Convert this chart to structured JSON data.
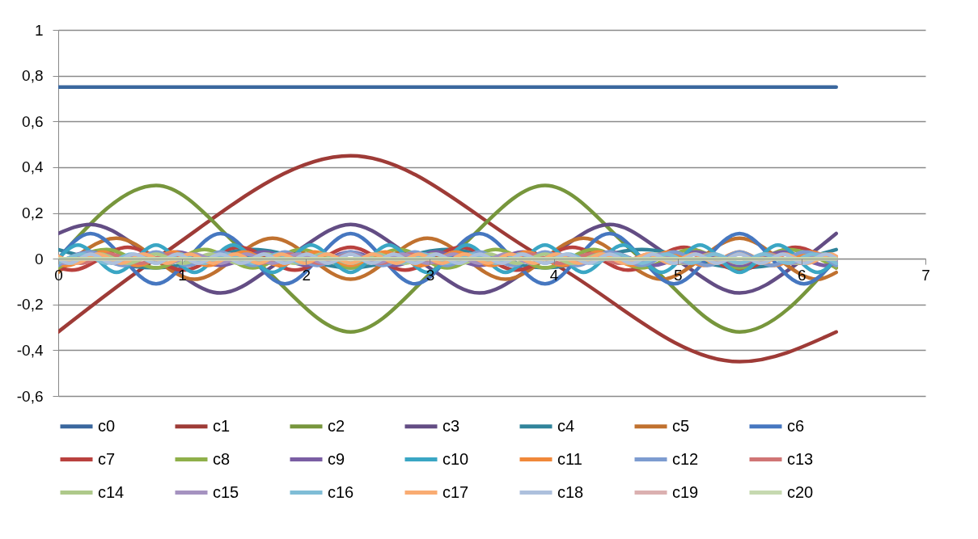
{
  "chart_data": {
    "type": "line",
    "xlim": [
      0,
      7
    ],
    "xticks": [
      0,
      1,
      2,
      3,
      4,
      5,
      6,
      7
    ],
    "ylim": [
      -0.6,
      1
    ],
    "yticks": [
      {
        "value": -0.6,
        "label": "-0,6"
      },
      {
        "value": -0.4,
        "label": "-0,4"
      },
      {
        "value": -0.2,
        "label": "-0,2"
      },
      0,
      {
        "value": 0.2,
        "label": "0,2"
      },
      {
        "value": 0.4,
        "label": "0,4"
      },
      {
        "value": 0.6,
        "label": "0,6"
      },
      {
        "value": 0.8,
        "label": "0,8"
      },
      1
    ],
    "grid": "y",
    "legend": "bottom",
    "series": [
      {
        "name": "c0",
        "color": "#3a679e",
        "x": [
          0,
          6.28
        ],
        "values": [
          0.75,
          0.75
        ]
      },
      {
        "name": "c1",
        "color": "#9e3b37",
        "x": [
          0,
          0.79,
          2.36,
          3.93,
          5.5,
          6.28
        ],
        "values": [
          -0.32,
          0,
          0.45,
          0,
          -0.45,
          -0.32
        ]
      },
      {
        "name": "c2",
        "color": "#77963c",
        "x": [
          0,
          0.79,
          1.57,
          2.36,
          3.14,
          3.93,
          4.71,
          5.5,
          6.28
        ],
        "values": [
          0,
          0.32,
          0,
          -0.32,
          0,
          0.32,
          0,
          -0.32,
          0
        ]
      },
      {
        "name": "c3",
        "color": "#634d84",
        "x": [
          0,
          0.26,
          0.79,
          1.31,
          1.83,
          2.36,
          2.88,
          3.4,
          3.93,
          4.45,
          4.97,
          5.5,
          6.02,
          6.28
        ],
        "values": [
          0.11,
          0.15,
          0,
          -0.15,
          0,
          0.15,
          0,
          -0.15,
          0,
          0.15,
          0,
          -0.15,
          0,
          0.11
        ]
      },
      {
        "name": "c4",
        "color": "#31849b",
        "x": [
          0,
          0.79,
          1.57,
          2.36,
          3.14,
          3.93,
          4.71,
          5.5,
          6.28
        ],
        "values": [
          0.04,
          -0.04,
          0.04,
          -0.04,
          0.04,
          -0.04,
          0.04,
          -0.04,
          0.04
        ]
      },
      {
        "name": "c5",
        "color": "#c0712f",
        "x": [
          0,
          0.47,
          1.1,
          1.73,
          2.36,
          2.98,
          3.61,
          4.24,
          4.87,
          5.5,
          6.13,
          6.28
        ],
        "values": [
          -0.06,
          0.09,
          -0.09,
          0.09,
          -0.09,
          0.09,
          -0.09,
          0.09,
          -0.09,
          0.09,
          -0.09,
          -0.06
        ]
      },
      {
        "name": "c6",
        "color": "#4677c0",
        "x": [
          0,
          0.26,
          0.79,
          1.31,
          1.83,
          2.36,
          2.88,
          3.4,
          3.93,
          4.45,
          4.97,
          5.5,
          6.02,
          6.28
        ],
        "values": [
          0,
          0.11,
          -0.11,
          0.11,
          -0.11,
          0.11,
          -0.11,
          0.11,
          -0.11,
          0.11,
          -0.11,
          0.11,
          -0.11,
          0
        ]
      },
      {
        "name": "c7",
        "color": "#b9413e",
        "x": [
          0,
          0.11,
          0.56,
          1.01,
          1.46,
          1.91,
          2.36,
          2.8,
          3.25,
          3.7,
          4.15,
          4.6,
          5.05,
          5.5,
          5.95,
          6.28
        ],
        "values": [
          -0.04,
          -0.05,
          0.05,
          -0.05,
          0.05,
          -0.05,
          0.05,
          -0.05,
          0.05,
          -0.05,
          0.05,
          -0.05,
          0.05,
          -0.05,
          0.05,
          -0.04
        ]
      },
      {
        "name": "c8",
        "color": "#8fb04a",
        "x": [
          0,
          0.39,
          0.79,
          1.18,
          1.57,
          1.96,
          2.36,
          2.75,
          3.14,
          3.53,
          3.93,
          4.32,
          4.71,
          5.11,
          5.5,
          5.89,
          6.28
        ],
        "values": [
          -0.04,
          0.04,
          -0.04,
          0.04,
          -0.04,
          0.04,
          -0.04,
          0.04,
          -0.04,
          0.04,
          -0.04,
          0.04,
          -0.04,
          0.04,
          -0.04,
          0.04,
          -0.04
        ]
      },
      {
        "name": "c9",
        "color": "#7a5ea3",
        "x": [
          0,
          0.26,
          0.61,
          0.96,
          1.31,
          1.66,
          2.01,
          2.36,
          2.71,
          3.05,
          3.4,
          3.75,
          4.1,
          4.45,
          4.8,
          5.15,
          5.5,
          5.85,
          6.2,
          6.28
        ],
        "values": [
          -0.02,
          0.03,
          -0.03,
          0.03,
          -0.03,
          0.03,
          -0.03,
          0.03,
          -0.03,
          0.03,
          -0.03,
          0.03,
          -0.03,
          0.03,
          -0.03,
          0.03,
          -0.03,
          0.03,
          -0.03,
          -0.02
        ]
      },
      {
        "name": "c10",
        "color": "#3aa6c4",
        "x": [
          0,
          0.16,
          0.47,
          0.79,
          1.1,
          1.41,
          1.73,
          2.04,
          2.36,
          2.67,
          2.98,
          3.3,
          3.61,
          3.93,
          4.24,
          4.56,
          4.87,
          5.18,
          5.5,
          5.81,
          6.13,
          6.28
        ],
        "values": [
          0,
          0.06,
          -0.06,
          0.06,
          -0.06,
          0.06,
          -0.06,
          0.06,
          -0.06,
          0.06,
          -0.06,
          0.06,
          -0.06,
          0.06,
          -0.06,
          0.06,
          -0.06,
          0.06,
          -0.06,
          0.06,
          -0.06,
          0
        ]
      },
      {
        "name": "c11",
        "color": "#f0883a",
        "x": [
          0,
          0.07,
          0.36,
          0.64,
          0.93,
          1.21,
          1.5,
          1.79,
          2.07,
          2.36,
          2.64,
          2.93,
          3.21,
          3.5,
          3.78,
          4.07,
          4.36,
          4.64,
          4.93,
          5.21,
          5.5,
          5.78,
          6.07,
          6.28
        ],
        "values": [
          -0.02,
          -0.03,
          0.03,
          -0.03,
          0.03,
          -0.03,
          0.03,
          -0.03,
          0.03,
          -0.03,
          0.03,
          -0.03,
          0.03,
          -0.03,
          0.03,
          -0.03,
          0.03,
          -0.03,
          0.03,
          -0.03,
          0.03,
          -0.03,
          0.03,
          -0.02
        ]
      },
      {
        "name": "c12",
        "color": "#7d9cd0",
        "x": [
          0,
          0.26,
          0.52,
          0.79,
          1.05,
          1.31,
          1.57,
          1.83,
          2.09,
          2.36,
          2.62,
          2.88,
          3.14,
          3.4,
          3.67,
          3.93,
          4.19,
          4.45,
          4.71,
          4.97,
          5.24,
          5.5,
          5.76,
          6.02,
          6.28
        ],
        "values": [
          -0.03,
          0.03,
          -0.03,
          0.03,
          -0.03,
          0.03,
          -0.03,
          0.03,
          -0.03,
          0.03,
          -0.03,
          0.03,
          -0.03,
          0.03,
          -0.03,
          0.03,
          -0.03,
          0.03,
          -0.03,
          0.03,
          -0.03,
          0.03,
          -0.03,
          0.03,
          -0.03
        ]
      },
      {
        "name": "c13",
        "color": "#d07575",
        "x": [
          0,
          0.18,
          0.42,
          0.66,
          0.91,
          1.15,
          1.39,
          1.63,
          1.87,
          2.11,
          2.36,
          2.6,
          2.84,
          3.08,
          3.32,
          3.56,
          3.81,
          4.05,
          4.29,
          4.53,
          4.77,
          5.01,
          5.26,
          5.5,
          5.74,
          5.98,
          6.22,
          6.28
        ],
        "values": [
          0.01,
          -0.02,
          0.02,
          -0.02,
          0.02,
          -0.02,
          0.02,
          -0.02,
          0.02,
          -0.02,
          0.02,
          -0.02,
          0.02,
          -0.02,
          0.02,
          -0.02,
          0.02,
          -0.02,
          0.02,
          -0.02,
          0.02,
          -0.02,
          0.02,
          -0.02,
          0.02,
          -0.02,
          0.02,
          0.01
        ]
      },
      {
        "name": "c14",
        "color": "#aec98a",
        "x": [
          0,
          0.11,
          0.34,
          0.56,
          0.79,
          1.01,
          1.23,
          1.46,
          1.68,
          1.91,
          2.13,
          2.36,
          2.58,
          2.8,
          3.03,
          3.25,
          3.48,
          3.7,
          3.93,
          4.15,
          4.38,
          4.6,
          4.82,
          5.05,
          5.27,
          5.5,
          5.72,
          5.95,
          6.17,
          6.28
        ],
        "values": [
          0,
          -0.02,
          0.02,
          -0.02,
          0.02,
          -0.02,
          0.02,
          -0.02,
          0.02,
          -0.02,
          0.02,
          -0.02,
          0.02,
          -0.02,
          0.02,
          -0.02,
          0.02,
          -0.02,
          0.02,
          -0.02,
          0.02,
          -0.02,
          0.02,
          -0.02,
          0.02,
          -0.02,
          0.02,
          -0.02,
          0.02,
          0
        ]
      },
      {
        "name": "c15",
        "color": "#a592c0",
        "x": [
          0,
          0.05,
          0.26,
          0.47,
          0.68,
          0.89,
          1.1,
          1.31,
          1.52,
          1.73,
          1.94,
          2.15,
          2.36,
          2.57,
          2.78,
          2.98,
          3.19,
          3.4,
          3.61,
          3.82,
          4.03,
          4.24,
          4.45,
          4.66,
          4.87,
          5.08,
          5.29,
          5.5,
          5.71,
          5.92,
          6.13,
          6.28
        ],
        "values": [
          -0.01,
          -0.02,
          0.02,
          -0.02,
          0.02,
          -0.02,
          0.02,
          -0.02,
          0.02,
          -0.02,
          0.02,
          -0.02,
          0.02,
          -0.02,
          0.02,
          -0.02,
          0.02,
          -0.02,
          0.02,
          -0.02,
          0.02,
          -0.02,
          0.02,
          -0.02,
          0.02,
          -0.02,
          0.02,
          -0.02,
          0.02,
          -0.02,
          0.02,
          -0.01
        ]
      },
      {
        "name": "c16",
        "color": "#7fbdd6",
        "x": [
          0,
          0.2,
          0.39,
          0.59,
          0.79,
          0.98,
          1.18,
          1.37,
          1.57,
          1.77,
          1.96,
          2.16,
          2.36,
          2.55,
          2.75,
          2.95,
          3.14,
          3.34,
          3.53,
          3.73,
          3.93,
          4.12,
          4.32,
          4.52,
          4.71,
          4.91,
          5.11,
          5.3,
          5.5,
          5.69,
          5.89,
          6.09,
          6.28
        ],
        "values": [
          -0.02,
          0.02,
          -0.02,
          0.02,
          -0.02,
          0.02,
          -0.02,
          0.02,
          -0.02,
          0.02,
          -0.02,
          0.02,
          -0.02,
          0.02,
          -0.02,
          0.02,
          -0.02,
          0.02,
          -0.02,
          0.02,
          -0.02,
          0.02,
          -0.02,
          0.02,
          -0.02,
          0.02,
          -0.02,
          0.02,
          -0.02,
          0.02,
          -0.02,
          0.02,
          -0.02
        ]
      },
      {
        "name": "c17",
        "color": "#f9ac72",
        "x": [
          0,
          0.14,
          0.32,
          0.51,
          0.69,
          0.88,
          1.06,
          1.25,
          1.43,
          1.62,
          1.8,
          1.99,
          2.17,
          2.36,
          2.54,
          2.73,
          2.91,
          3.1,
          3.28,
          3.47,
          3.65,
          3.84,
          4.02,
          4.2,
          4.39,
          4.57,
          4.76,
          4.94,
          5.13,
          5.31,
          5.5,
          5.68,
          5.87,
          6.05,
          6.24,
          6.28
        ],
        "values": [
          0.01,
          -0.02,
          0.02,
          -0.02,
          0.02,
          -0.02,
          0.02,
          -0.02,
          0.02,
          -0.02,
          0.02,
          -0.02,
          0.02,
          -0.02,
          0.02,
          -0.02,
          0.02,
          -0.02,
          0.02,
          -0.02,
          0.02,
          -0.02,
          0.02,
          -0.02,
          0.02,
          -0.02,
          0.02,
          -0.02,
          0.02,
          -0.02,
          0.02,
          -0.02,
          0.02,
          -0.02,
          0.02,
          0.01
        ]
      },
      {
        "name": "c18",
        "color": "#adc0dd",
        "x": [
          0,
          0.09,
          0.26,
          0.44,
          0.61,
          0.79,
          0.96,
          1.13,
          1.31,
          1.48,
          1.66,
          1.83,
          2.01,
          2.18,
          2.36,
          2.53,
          2.71,
          2.88,
          3.05,
          3.23,
          3.4,
          3.58,
          3.75,
          3.93,
          4.1,
          4.28,
          4.45,
          4.63,
          4.8,
          4.97,
          5.15,
          5.32,
          5.5,
          5.67,
          5.85,
          6.02,
          6.2,
          6.28
        ],
        "values": [
          0,
          -0.02,
          0.02,
          -0.02,
          0.02,
          -0.02,
          0.02,
          -0.02,
          0.02,
          -0.02,
          0.02,
          -0.02,
          0.02,
          -0.02,
          0.02,
          -0.02,
          0.02,
          -0.02,
          0.02,
          -0.02,
          0.02,
          -0.02,
          0.02,
          -0.02,
          0.02,
          -0.02,
          0.02,
          -0.02,
          0.02,
          -0.02,
          0.02,
          -0.02,
          0.02,
          -0.02,
          0.02,
          -0.02,
          0.02,
          0
        ]
      },
      {
        "name": "c19",
        "color": "#dbb0b0",
        "x": [
          0,
          6.28
        ],
        "values": [
          0,
          0
        ]
      },
      {
        "name": "c20",
        "color": "#c6d9b0",
        "x": [
          0,
          6.28
        ],
        "values": [
          0,
          0
        ]
      }
    ]
  }
}
